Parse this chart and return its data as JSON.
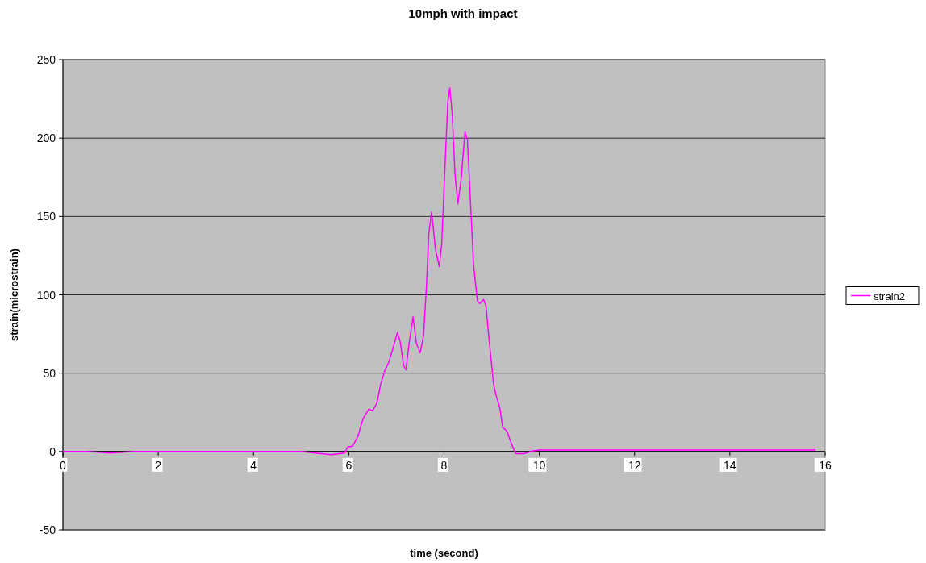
{
  "chart_data": {
    "type": "line",
    "title": "10mph with impact",
    "xlabel": "time (second)",
    "ylabel": "strain(microstrain)",
    "xlim": [
      0,
      16
    ],
    "xticks": [
      0,
      2,
      4,
      6,
      8,
      10,
      12,
      14,
      16
    ],
    "ylim": [
      -50,
      250
    ],
    "yticks": [
      -50,
      0,
      50,
      100,
      150,
      200,
      250
    ],
    "grid": "y",
    "legend": "right",
    "series": [
      {
        "name": "strain2",
        "color": "#ff00ff",
        "x": [
          0,
          0.5,
          1,
          1.5,
          2,
          2.5,
          3,
          3.5,
          4,
          4.5,
          5,
          5.3,
          5.63,
          5.91,
          5.98,
          6.08,
          6.19,
          6.3,
          6.42,
          6.5,
          6.59,
          6.67,
          6.76,
          6.84,
          6.92,
          7.02,
          7.08,
          7.15,
          7.2,
          7.27,
          7.35,
          7.42,
          7.5,
          7.57,
          7.63,
          7.68,
          7.74,
          7.82,
          7.9,
          7.95,
          8.02,
          8.08,
          8.12,
          8.17,
          8.23,
          8.29,
          8.36,
          8.44,
          8.49,
          8.56,
          8.62,
          8.7,
          8.75,
          8.83,
          8.88,
          8.95,
          9.04,
          9.09,
          9.17,
          9.23,
          9.32,
          9.39,
          9.5,
          9.68,
          9.85,
          10,
          11,
          12,
          13,
          14,
          15,
          15.8
        ],
        "values": [
          0,
          0,
          -1,
          0,
          0,
          0,
          0,
          0,
          0,
          0,
          0,
          -1,
          -2,
          -1,
          3,
          3.4,
          9.5,
          21,
          27,
          26,
          31,
          43,
          52,
          57,
          65,
          76,
          70,
          55,
          52,
          70,
          86,
          69,
          63,
          74,
          105,
          139,
          153,
          129,
          118,
          132,
          182,
          223,
          232,
          216,
          177,
          158,
          174,
          204,
          199,
          156,
          119,
          96,
          94.5,
          97,
          93,
          70,
          43,
          36,
          28,
          15.5,
          13,
          7,
          -1.4,
          -1.4,
          0.3,
          1,
          1,
          1,
          1,
          1,
          1,
          1
        ]
      }
    ]
  }
}
